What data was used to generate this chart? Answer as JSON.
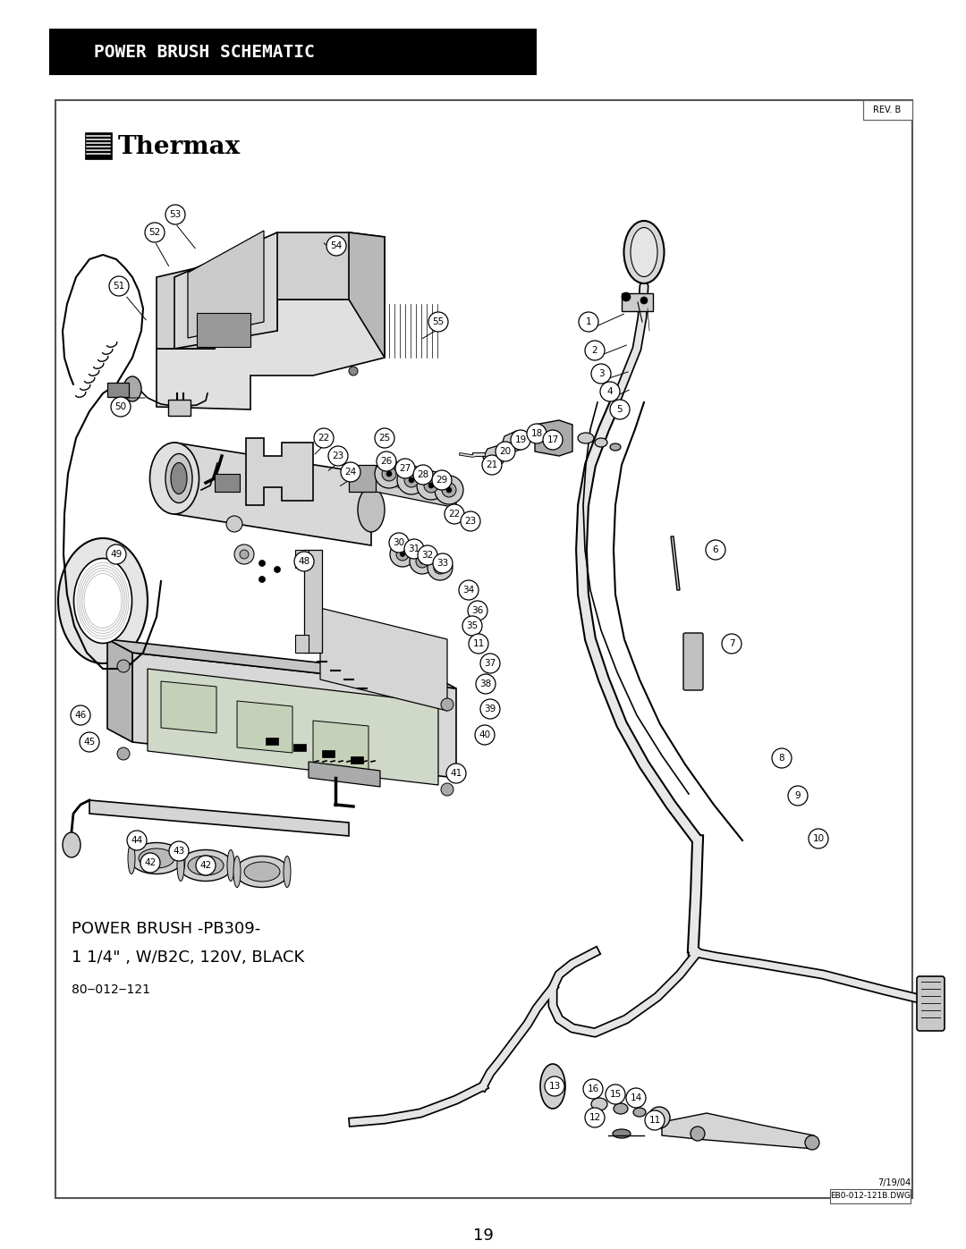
{
  "title_banner_text": "POWER BRUSH SCHEMATIC",
  "title_banner_bg": "#000000",
  "title_banner_text_color": "#ffffff",
  "page_bg": "#ffffff",
  "rev_label": "REV. B",
  "page_number": "19",
  "date_label": "7/19/04",
  "file_label": "EB0-012-121B.DWG",
  "product_desc_line1": "POWER BRUSH -PB309-",
  "product_desc_line2": "1 1/4\" , W/B2C, 120V, BLACK",
  "product_desc_line3": "80‒012‒121",
  "inner_box_border": "#555555",
  "lw_main": 1.2,
  "lw_thin": 0.7
}
